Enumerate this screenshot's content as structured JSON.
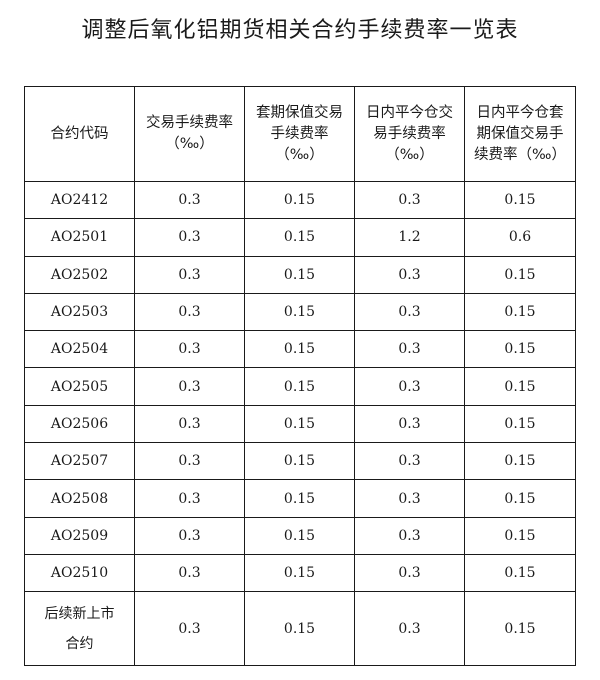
{
  "title": "调整后氧化铝期货相关合约手续费率一览表",
  "table": {
    "headers": [
      "合约代码",
      "交易手续费率（‰）",
      "套期保值交易手续费率（‰）",
      "日内平今仓交易手续费率（‰）",
      "日内平今仓套期保值交易手续费率（‰）"
    ],
    "rows": [
      {
        "code": "AO2412",
        "trade": "0.3",
        "hedge": "0.15",
        "intraday": "0.3",
        "intraday_hedge": "0.15"
      },
      {
        "code": "AO2501",
        "trade": "0.3",
        "hedge": "0.15",
        "intraday": "1.2",
        "intraday_hedge": "0.6"
      },
      {
        "code": "AO2502",
        "trade": "0.3",
        "hedge": "0.15",
        "intraday": "0.3",
        "intraday_hedge": "0.15"
      },
      {
        "code": "AO2503",
        "trade": "0.3",
        "hedge": "0.15",
        "intraday": "0.3",
        "intraday_hedge": "0.15"
      },
      {
        "code": "AO2504",
        "trade": "0.3",
        "hedge": "0.15",
        "intraday": "0.3",
        "intraday_hedge": "0.15"
      },
      {
        "code": "AO2505",
        "trade": "0.3",
        "hedge": "0.15",
        "intraday": "0.3",
        "intraday_hedge": "0.15"
      },
      {
        "code": "AO2506",
        "trade": "0.3",
        "hedge": "0.15",
        "intraday": "0.3",
        "intraday_hedge": "0.15"
      },
      {
        "code": "AO2507",
        "trade": "0.3",
        "hedge": "0.15",
        "intraday": "0.3",
        "intraday_hedge": "0.15"
      },
      {
        "code": "AO2508",
        "trade": "0.3",
        "hedge": "0.15",
        "intraday": "0.3",
        "intraday_hedge": "0.15"
      },
      {
        "code": "AO2509",
        "trade": "0.3",
        "hedge": "0.15",
        "intraday": "0.3",
        "intraday_hedge": "0.15"
      },
      {
        "code": "AO2510",
        "trade": "0.3",
        "hedge": "0.15",
        "intraday": "0.3",
        "intraday_hedge": "0.15"
      },
      {
        "code": "后续新上市合约",
        "trade": "0.3",
        "hedge": "0.15",
        "intraday": "0.3",
        "intraday_hedge": "0.15"
      }
    ]
  }
}
